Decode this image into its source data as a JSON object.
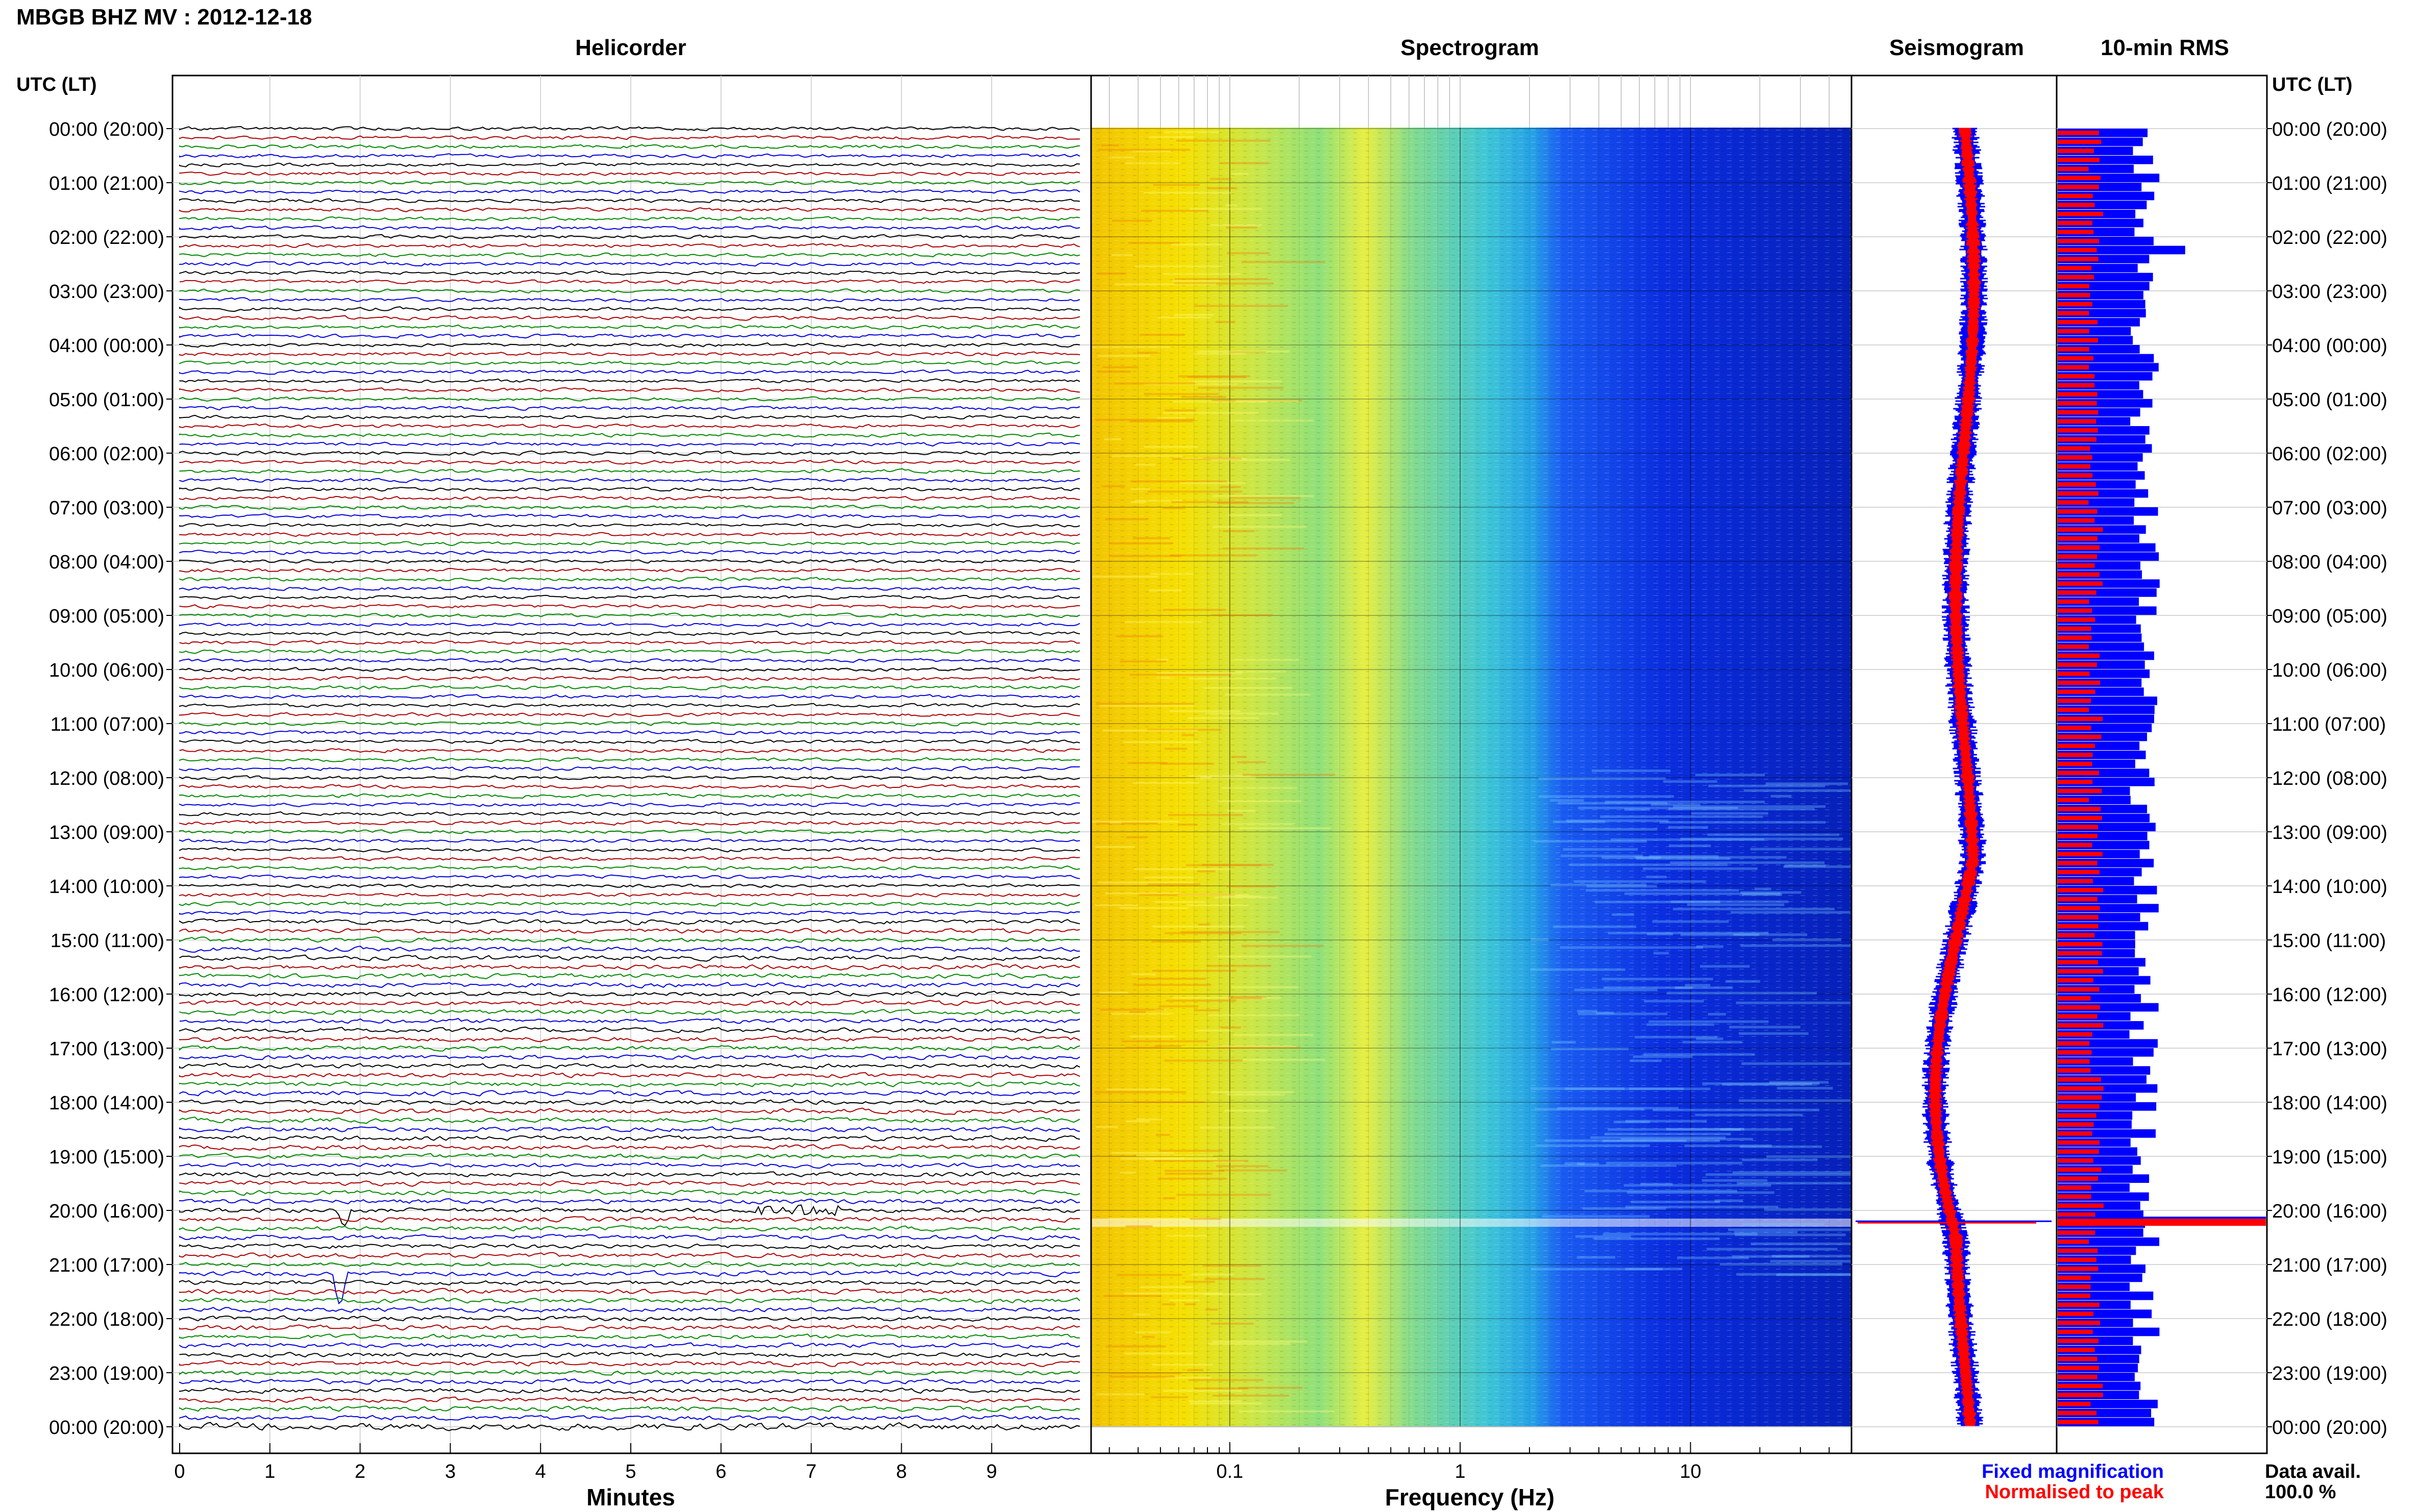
{
  "header": {
    "title": "MBGB BHZ MV : 2012-12-18"
  },
  "panels": {
    "helicorder": "Helicorder",
    "spectrogram": "Spectrogram",
    "seismogram": "Seismogram",
    "rms": "10-min RMS"
  },
  "axes": {
    "time_left_header": "UTC (LT)",
    "time_right_header": "UTC (LT)",
    "minutes_label": "Minutes",
    "frequency_label": "Frequency (Hz)"
  },
  "legend": {
    "fixed": "Fixed magnification",
    "normalised": "Normalised to peak",
    "fixed_color": "#0000ff",
    "normalised_color": "#ff0000"
  },
  "availability": {
    "label": "Data avail.",
    "value": "100.0 %"
  },
  "chart_data": {
    "type": "line",
    "time_labels": [
      "00:00 (20:00)",
      "01:00 (21:00)",
      "02:00 (22:00)",
      "03:00 (23:00)",
      "04:00 (00:00)",
      "05:00 (01:00)",
      "06:00 (02:00)",
      "07:00 (03:00)",
      "08:00 (04:00)",
      "09:00 (05:00)",
      "10:00 (06:00)",
      "11:00 (07:00)",
      "12:00 (08:00)",
      "13:00 (09:00)",
      "14:00 (10:00)",
      "15:00 (11:00)",
      "16:00 (12:00)",
      "17:00 (13:00)",
      "18:00 (14:00)",
      "19:00 (15:00)",
      "20:00 (16:00)",
      "21:00 (17:00)",
      "22:00 (18:00)",
      "23:00 (19:00)",
      "00:00 (20:00)"
    ],
    "helicorder": {
      "x_ticks": [
        "0",
        "1",
        "2",
        "3",
        "4",
        "5",
        "6",
        "7",
        "8",
        "9"
      ],
      "xlim": [
        0,
        10
      ],
      "trace_colors": [
        "#000000",
        "#aa0000",
        "#008800",
        "#0000dd"
      ],
      "traces_per_hour": 6
    },
    "spectrogram": {
      "x_scale": "log",
      "xlim": [
        0.025,
        50
      ],
      "x_ticks": [
        "0.1",
        "1",
        "10"
      ],
      "x_tick_values": [
        0.1,
        1,
        10
      ]
    },
    "rms": {
      "blue_color": "#0000ff",
      "red_color": "#ff0000",
      "spike_time_hours": 20.2
    }
  }
}
